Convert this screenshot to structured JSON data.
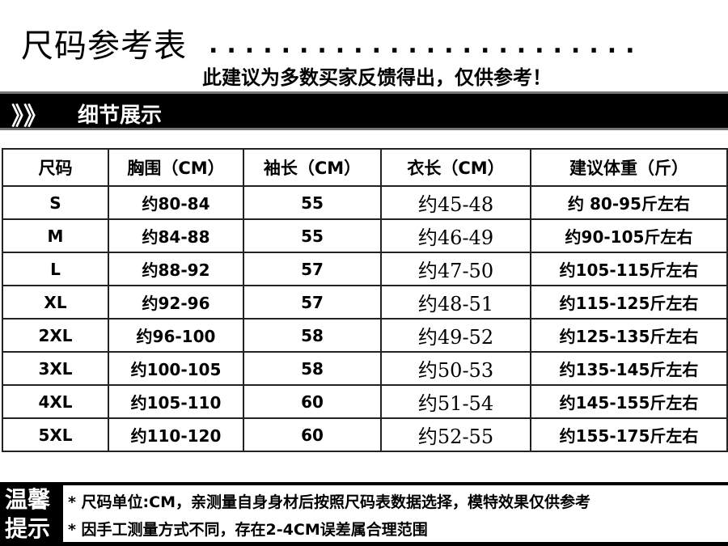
{
  "header": {
    "title": "尺码参考表",
    "dots": "........................",
    "subtitle": "此建议为多数买家反馈得出，仅供参考！"
  },
  "section_bar": {
    "icon": "double-chevron-right-icon",
    "glyph": "》》",
    "label": "细节展示"
  },
  "table": {
    "headers": [
      "尺码",
      "胸围（CM）",
      "袖长（CM）",
      "衣长（CM）",
      "建议体重（斤）"
    ],
    "rows": [
      [
        "S",
        "约80-84",
        "55",
        "约45-48",
        "约 80-95斤左右"
      ],
      [
        "M",
        "约84-88",
        "55",
        "约46-49",
        "约90-105斤左右"
      ],
      [
        "L",
        "约88-92",
        "57",
        "约47-50",
        "约105-115斤左右"
      ],
      [
        "XL",
        "约92-96",
        "57",
        "约48-51",
        "约115-125斤左右"
      ],
      [
        "2XL",
        "约96-100",
        "58",
        "约49-52",
        "约125-135斤左右"
      ],
      [
        "3XL",
        "约100-105",
        "58",
        "约50-53",
        "约135-145斤左右"
      ],
      [
        "4XL",
        "约105-110",
        "60",
        "约51-54",
        "约145-155斤左右"
      ],
      [
        "5XL",
        "约110-120",
        "60",
        "约52-55",
        "约155-175斤左右"
      ]
    ]
  },
  "tips": {
    "label_line1": "温馨",
    "label_line2": "提示",
    "items": [
      "* 尺码单位:CM，亲测量自身身材后按照尺码表数据选择，模特效果仅供参考",
      "* 因手工测量方式不同，存在2-4CM误差属合理范围"
    ]
  }
}
